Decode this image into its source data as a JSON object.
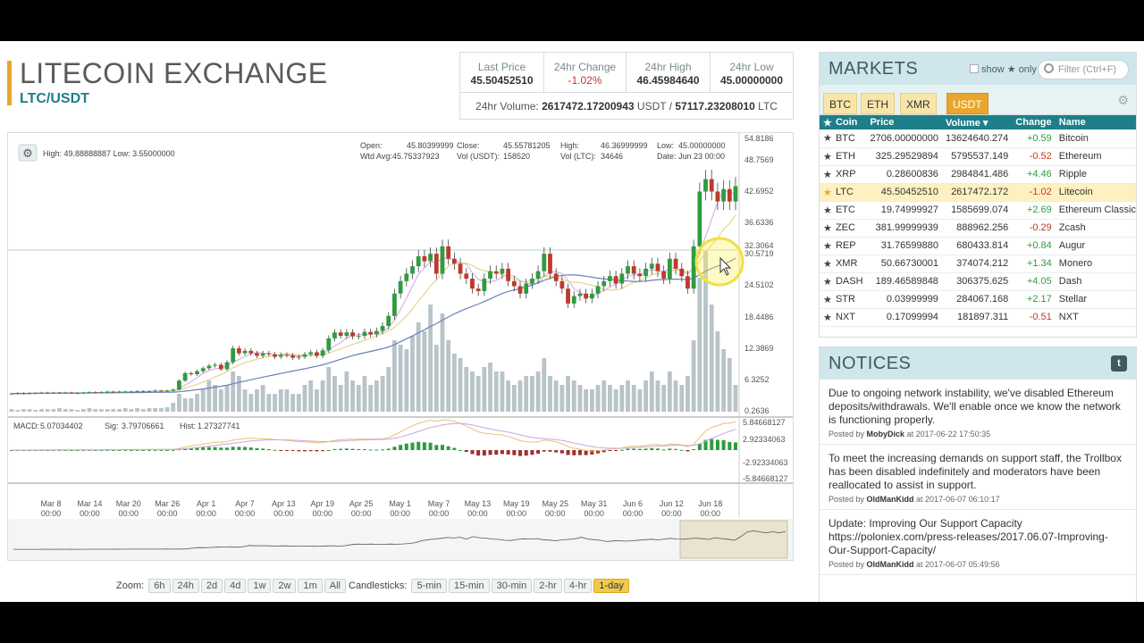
{
  "header": {
    "title": "LITECOIN EXCHANGE",
    "pair": "LTC/USDT"
  },
  "stats": {
    "last_price_label": "Last Price",
    "last_price": "45.50452510",
    "change_label": "24hr Change",
    "change": "-1.02%",
    "high_label": "24hr High",
    "high": "46.45984640",
    "low_label": "24hr Low",
    "low": "45.00000000",
    "volume_label": "24hr Volume:",
    "volume_usdt": "2617472.17200943",
    "volume_unit_usdt": "USDT /",
    "volume_ltc": "57117.23208010",
    "volume_unit_ltc": "LTC"
  },
  "chart_header": {
    "high_low": "High: 49.88888887   Low: 3.55000000",
    "open_label": "Open:",
    "open": "45.80399999",
    "close_label": "Close:",
    "close": "45.55781205",
    "high_label": "High:",
    "high": "46.36999999",
    "low_label": "Low:",
    "low": "45.00000000",
    "wtd_label": "Wtd Avg:",
    "wtd": "45.75337923",
    "volusdt_label": "Vol (USDT):",
    "volusdt": "158520",
    "volltc_label": "Vol (LTC):",
    "volltc": "34646",
    "date_label": "Date:",
    "date": "Jun 23 00:00"
  },
  "macd": {
    "macd_label": "MACD:",
    "macd": "5.07034402",
    "sig_label": "Sig:",
    "sig": "3.79706661",
    "hist_label": "Hist:",
    "hist": "1.27327741"
  },
  "chart_data": {
    "type": "candlestick",
    "price_axis": [
      "54.8186",
      "48.7569",
      "42.6952",
      "36.6336",
      "32.3064",
      "30.5719",
      "24.5102",
      "18.4486",
      "12.3869",
      "6.3252",
      "0.2636"
    ],
    "macd_axis": [
      "5.84668127",
      "2.92334063",
      "-2.92334063",
      "-5.84668127"
    ],
    "x_labels": [
      {
        "d": "Mar 8",
        "t": "00:00"
      },
      {
        "d": "Mar 14",
        "t": "00:00"
      },
      {
        "d": "Mar 20",
        "t": "00:00"
      },
      {
        "d": "Mar 26",
        "t": "00:00"
      },
      {
        "d": "Apr 1",
        "t": "00:00"
      },
      {
        "d": "Apr 7",
        "t": "00:00"
      },
      {
        "d": "Apr 13",
        "t": "00:00"
      },
      {
        "d": "Apr 19",
        "t": "00:00"
      },
      {
        "d": "Apr 25",
        "t": "00:00"
      },
      {
        "d": "May 1",
        "t": "00:00"
      },
      {
        "d": "May 7",
        "t": "00:00"
      },
      {
        "d": "May 13",
        "t": "00:00"
      },
      {
        "d": "May 19",
        "t": "00:00"
      },
      {
        "d": "May 25",
        "t": "00:00"
      },
      {
        "d": "May 31",
        "t": "00:00"
      },
      {
        "d": "Jun 6",
        "t": "00:00"
      },
      {
        "d": "Jun 12",
        "t": "00:00"
      },
      {
        "d": "Jun 18",
        "t": "00:00"
      }
    ],
    "closes": [
      3.9,
      4.0,
      3.9,
      4.0,
      4.0,
      4.1,
      4.0,
      4.1,
      4.0,
      4.1,
      4.0,
      4.0,
      4.1,
      4.2,
      4.1,
      4.2,
      4.3,
      4.2,
      4.3,
      4.3,
      4.3,
      4.4,
      4.4,
      4.4,
      4.5,
      4.4,
      4.5,
      4.7,
      6.5,
      8.0,
      7.8,
      8.4,
      9.0,
      9.5,
      9.7,
      8.8,
      10.2,
      13.0,
      12.0,
      12.5,
      12.0,
      11.5,
      12.0,
      11.8,
      11.3,
      11.7,
      11.6,
      11.1,
      11.3,
      11.8,
      12.2,
      11.5,
      12.6,
      15.0,
      16.2,
      15.5,
      16.2,
      15.4,
      15.5,
      16.3,
      15.8,
      16.5,
      17.5,
      19.5,
      24.0,
      26.5,
      28.0,
      29.5,
      31.5,
      30.5,
      32.0,
      28.0,
      33.5,
      31.0,
      30.0,
      28.0,
      27.0,
      25.0,
      24.5,
      27.0,
      28.5,
      28.0,
      29.0,
      26.5,
      25.5,
      24.0,
      26.0,
      27.0,
      28.5,
      32.0,
      28.0,
      26.5,
      25.0,
      22.0,
      23.5,
      24.0,
      23.0,
      24.0,
      25.5,
      26.5,
      27.5,
      26.0,
      28.0,
      29.5,
      28.0,
      27.5,
      29.0,
      30.0,
      28.5,
      27.0,
      31.0,
      29.0,
      27.5,
      25.0,
      33.5,
      44.5,
      47.0,
      44.5,
      42.5,
      45.0,
      42.5,
      45.6
    ],
    "volumes": [
      0.3,
      0.2,
      0.3,
      0.3,
      0.2,
      0.3,
      0.3,
      0.3,
      0.4,
      0.3,
      0.3,
      0.2,
      0.3,
      0.4,
      0.3,
      0.3,
      0.3,
      0.3,
      0.3,
      0.4,
      0.3,
      0.4,
      0.3,
      0.4,
      0.4,
      0.4,
      0.5,
      1.0,
      2.0,
      1.5,
      1.5,
      2.0,
      2.5,
      3.5,
      3.0,
      2.5,
      3.0,
      4.5,
      4.0,
      2.5,
      2.0,
      2.5,
      3.0,
      2.0,
      2.0,
      2.5,
      2.5,
      2.0,
      2.0,
      3.0,
      3.5,
      2.5,
      3.5,
      5.0,
      4.0,
      3.0,
      4.5,
      3.5,
      3.0,
      4.0,
      3.0,
      3.5,
      4.0,
      5.0,
      8.0,
      7.5,
      7.0,
      8.5,
      10.0,
      9.0,
      12.0,
      7.5,
      11.0,
      8.0,
      6.5,
      6.0,
      5.0,
      4.5,
      4.0,
      5.0,
      5.5,
      4.5,
      4.5,
      3.5,
      3.0,
      3.5,
      4.0,
      4.0,
      4.5,
      6.0,
      4.0,
      3.5,
      3.0,
      4.0,
      3.5,
      3.0,
      2.5,
      2.5,
      3.0,
      3.5,
      3.0,
      2.5,
      3.0,
      3.5,
      3.0,
      2.5,
      3.5,
      4.5,
      3.5,
      3.0,
      4.5,
      3.5,
      3.0,
      4.0,
      8.0,
      15.0,
      18.0,
      12.0,
      9.0,
      7.0,
      6.0,
      3.0
    ],
    "grid": true
  },
  "zoom": {
    "label": "Zoom:",
    "options": [
      "6h",
      "24h",
      "2d",
      "4d",
      "1w",
      "2w",
      "1m",
      "All"
    ]
  },
  "candlesticks": {
    "label": "Candlesticks:",
    "options": [
      "5-min",
      "15-min",
      "30-min",
      "2-hr",
      "4-hr",
      "1-day"
    ],
    "active": "1-day"
  },
  "markets": {
    "title": "MARKETS",
    "show_only_prefix": "show",
    "show_only_suffix": "only",
    "filter_placeholder": "Filter (Ctrl+F)",
    "tabs": [
      "BTC",
      "ETH",
      "XMR",
      "USDT"
    ],
    "active_tab": "USDT",
    "columns": [
      "Coin",
      "Price",
      "Volume ▾",
      "Change",
      "Name"
    ],
    "rows": [
      {
        "coin": "BTC",
        "price": "2706.00000000",
        "volume": "13624640.274",
        "change": "+0.59",
        "name": "Bitcoin"
      },
      {
        "coin": "ETH",
        "price": "325.29529894",
        "volume": "5795537.149",
        "change": "-0.52",
        "name": "Ethereum"
      },
      {
        "coin": "XRP",
        "price": "0.28600836",
        "volume": "2984841.486",
        "change": "+4.46",
        "name": "Ripple"
      },
      {
        "coin": "LTC",
        "price": "45.50452510",
        "volume": "2617472.172",
        "change": "-1.02",
        "name": "Litecoin"
      },
      {
        "coin": "ETC",
        "price": "19.74999927",
        "volume": "1585699.074",
        "change": "+2.69",
        "name": "Ethereum Classic"
      },
      {
        "coin": "ZEC",
        "price": "381.99999939",
        "volume": "888962.256",
        "change": "-0.29",
        "name": "Zcash"
      },
      {
        "coin": "REP",
        "price": "31.76599880",
        "volume": "680433.814",
        "change": "+0.84",
        "name": "Augur"
      },
      {
        "coin": "XMR",
        "price": "50.66730001",
        "volume": "374074.212",
        "change": "+1.34",
        "name": "Monero"
      },
      {
        "coin": "DASH",
        "price": "189.46589848",
        "volume": "306375.625",
        "change": "+4.05",
        "name": "Dash"
      },
      {
        "coin": "STR",
        "price": "0.03999999",
        "volume": "284067.168",
        "change": "+2.17",
        "name": "Stellar"
      },
      {
        "coin": "NXT",
        "price": "0.17099994",
        "volume": "181897.311",
        "change": "-0.51",
        "name": "NXT"
      }
    ]
  },
  "notices": {
    "title": "NOTICES",
    "posted_by": "Posted by",
    "at": "at",
    "items": [
      {
        "text": "Due to ongoing network instability, we've disabled Ethereum deposits/withdrawals. We'll enable once we know the network is functioning properly.",
        "author": "MobyDick",
        "time": "2017-06-22 17:50:35"
      },
      {
        "text": "To meet the increasing demands on support staff, the Trollbox has been disabled indefinitely and moderators have been reallocated to assist in support.",
        "author": "OldManKidd",
        "time": "2017-06-07 06:10:17"
      },
      {
        "text": "Update: Improving Our Support Capacity https://poloniex.com/press-releases/2017.06.07-Improving-Our-Support-Capacity/",
        "author": "OldManKidd",
        "time": "2017-06-07 05:49:56"
      }
    ]
  },
  "colors": {
    "accent": "#e8a72c",
    "teal": "#1d7f89",
    "up": "#2e9c3f",
    "down": "#c0392b"
  }
}
